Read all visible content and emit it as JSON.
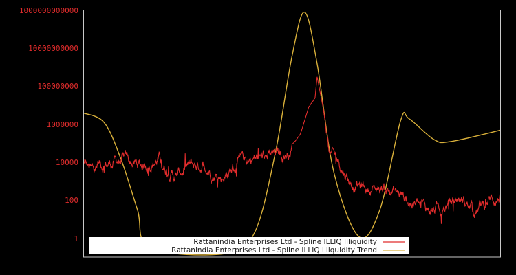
{
  "chart_data": {
    "type": "line",
    "title": "",
    "xlabel": "",
    "ylabel": "",
    "yscale": "log",
    "ylim": [
      0.4,
      1000000000000
    ],
    "y_ticks": [
      {
        "value": 1000000000000,
        "label": "1000000000000"
      },
      {
        "value": 10000000000,
        "label": "10000000000"
      },
      {
        "value": 100000000,
        "label": "100000000"
      },
      {
        "value": 1000000,
        "label": "1000000"
      },
      {
        "value": 10000,
        "label": "10000"
      },
      {
        "value": 100,
        "label": "100"
      },
      {
        "value": 1,
        "label": "1"
      }
    ],
    "x_ticks": [],
    "grid": false,
    "legend_position": "bottom-center-inside",
    "background": "#000000",
    "frame_color": "#c8c8c8",
    "tick_label_color": "#e02c2c",
    "series": [
      {
        "name": "Rattanindia Enterprises Ltd - Spline ILLIQ Illiquidity",
        "color": "#e02c2c",
        "approx_points_x_frac_log10y": [
          [
            0.0,
            4.0
          ],
          [
            0.02,
            3.5
          ],
          [
            0.05,
            3.9
          ],
          [
            0.09,
            4.1
          ],
          [
            0.14,
            3.8
          ],
          [
            0.18,
            4.2
          ],
          [
            0.22,
            3.3
          ],
          [
            0.25,
            3.7
          ],
          [
            0.29,
            3.9
          ],
          [
            0.33,
            3.2
          ],
          [
            0.36,
            3.7
          ],
          [
            0.4,
            4.2
          ],
          [
            0.45,
            4.3
          ],
          [
            0.49,
            4.5
          ],
          [
            0.52,
            5.5
          ],
          [
            0.54,
            6.9
          ],
          [
            0.555,
            7.4
          ],
          [
            0.56,
            8.5
          ],
          [
            0.575,
            6.8
          ],
          [
            0.59,
            4.5
          ],
          [
            0.61,
            4.1
          ],
          [
            0.64,
            3.0
          ],
          [
            0.68,
            2.6
          ],
          [
            0.72,
            2.7
          ],
          [
            0.76,
            2.3
          ],
          [
            0.82,
            1.5
          ],
          [
            0.86,
            1.6
          ],
          [
            0.9,
            2.1
          ],
          [
            0.94,
            1.5
          ],
          [
            0.97,
            2.0
          ],
          [
            1.0,
            2.2
          ]
        ]
      },
      {
        "name": "Rattanindia Enterprises Ltd - Spline ILLIQ Illiquidity Trend",
        "color": "#d9b03a",
        "approx_points_x_frac_log10y": [
          [
            0.0,
            6.6
          ],
          [
            0.05,
            6.1
          ],
          [
            0.09,
            4.2
          ],
          [
            0.13,
            1.5
          ],
          [
            0.16,
            -0.5
          ],
          [
            0.34,
            -0.8
          ],
          [
            0.41,
            0.3
          ],
          [
            0.46,
            4.5
          ],
          [
            0.5,
            9.6
          ],
          [
            0.53,
            11.9
          ],
          [
            0.56,
            9.2
          ],
          [
            0.6,
            3.5
          ],
          [
            0.66,
            0.1
          ],
          [
            0.71,
            1.5
          ],
          [
            0.76,
            6.2
          ],
          [
            0.78,
            6.3
          ],
          [
            0.84,
            5.2
          ],
          [
            0.88,
            5.1
          ],
          [
            1.0,
            5.7
          ]
        ]
      }
    ]
  },
  "legend": {
    "items": [
      {
        "label": "Rattanindia Enterprises Ltd - Spline ILLIQ Illiquidity",
        "color": "#e02c2c"
      },
      {
        "label": "Rattanindia Enterprises Ltd - Spline ILLIQ Illiquidity Trend",
        "color": "#d9b03a"
      }
    ]
  }
}
